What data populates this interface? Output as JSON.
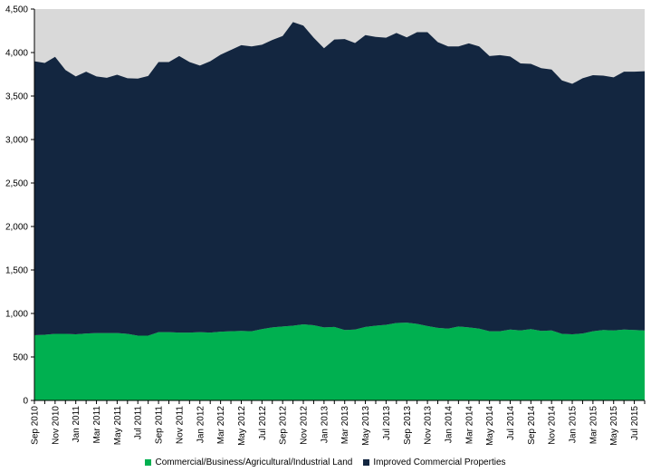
{
  "chart_data": {
    "type": "area",
    "stacked": true,
    "title": "",
    "xlabel": "",
    "ylabel": "",
    "ylim": [
      0,
      4500
    ],
    "yticks": [
      0,
      500,
      1000,
      1500,
      2000,
      2500,
      3000,
      3500,
      4000,
      4500
    ],
    "ytick_labels": [
      "0",
      "500",
      "1,000",
      "1,500",
      "2,000",
      "2,500",
      "3,000",
      "3,500",
      "4,000",
      "4,500"
    ],
    "x": [
      "Sep 2010",
      "Oct 2010",
      "Nov 2010",
      "Dec 2010",
      "Jan 2011",
      "Feb 2011",
      "Mar 2011",
      "Apr 2011",
      "May 2011",
      "Jun 2011",
      "Jul 2011",
      "Aug 2011",
      "Sep 2011",
      "Oct 2011",
      "Nov 2011",
      "Dec 2011",
      "Jan 2012",
      "Feb 2012",
      "Mar 2012",
      "Apr 2012",
      "May 2012",
      "Jun 2012",
      "Jul 2012",
      "Aug 2012",
      "Sep 2012",
      "Oct 2012",
      "Nov 2012",
      "Dec 2012",
      "Jan 2013",
      "Feb 2013",
      "Mar 2013",
      "Apr 2013",
      "May 2013",
      "Jun 2013",
      "Jul 2013",
      "Aug 2013",
      "Sep 2013",
      "Oct 2013",
      "Nov 2013",
      "Dec 2013",
      "Jan 2014",
      "Feb 2014",
      "Mar 2014",
      "Apr 2014",
      "May 2014",
      "Jun 2014",
      "Jul 2014",
      "Aug 2014",
      "Sep 2014",
      "Oct 2014",
      "Nov 2014",
      "Dec 2014",
      "Jan 2015",
      "Feb 2015",
      "Mar 2015",
      "Apr 2015",
      "May 2015",
      "Jun 2015",
      "Jul 2015",
      "Aug 2015"
    ],
    "xtick_labels": [
      "Sep 2010",
      "Nov 2010",
      "Jan 2011",
      "Mar 2011",
      "May 2011",
      "Jul 2011",
      "Sep 2011",
      "Nov 2011",
      "Jan 2012",
      "Mar 2012",
      "May 2012",
      "Jul 2012",
      "Sep 2012",
      "Nov 2012",
      "Jan 2013",
      "Mar 2013",
      "May 2013",
      "Jul 2013",
      "Sep 2013",
      "Nov 2013",
      "Jan 2014",
      "Mar 2014",
      "May 2014",
      "Jul 2014",
      "Sep 2014",
      "Nov 2014",
      "Jan 2015",
      "Mar 2015",
      "May 2015",
      "Jul 2015"
    ],
    "series": [
      {
        "name": "Commercial/Business/Agricultural/Industrial Land",
        "color": "#00b050",
        "values": [
          750,
          755,
          765,
          765,
          760,
          770,
          775,
          775,
          775,
          765,
          745,
          745,
          785,
          785,
          780,
          780,
          785,
          780,
          790,
          795,
          800,
          795,
          820,
          840,
          850,
          860,
          875,
          865,
          840,
          845,
          810,
          815,
          845,
          860,
          870,
          890,
          895,
          880,
          855,
          835,
          825,
          850,
          840,
          825,
          795,
          795,
          815,
          805,
          820,
          800,
          805,
          765,
          760,
          770,
          795,
          810,
          805,
          815,
          810,
          805
        ]
      },
      {
        "name": "Improved Commercial Properties",
        "color": "#132640",
        "values": [
          3150,
          3125,
          3185,
          3035,
          2965,
          3010,
          2950,
          2935,
          2970,
          2940,
          2955,
          2985,
          3105,
          3105,
          3180,
          3110,
          3065,
          3120,
          3185,
          3235,
          3285,
          3275,
          3270,
          3305,
          3340,
          3490,
          3435,
          3305,
          3210,
          3305,
          3345,
          3295,
          3355,
          3320,
          3300,
          3335,
          3280,
          3355,
          3380,
          3285,
          3245,
          3220,
          3265,
          3245,
          3165,
          3175,
          3140,
          3070,
          3050,
          3020,
          3000,
          2915,
          2880,
          2935,
          2945,
          2925,
          2910,
          2965,
          2970,
          2980
        ]
      }
    ],
    "background_band_color": "#d9d9d9",
    "legend_position": "bottom"
  }
}
